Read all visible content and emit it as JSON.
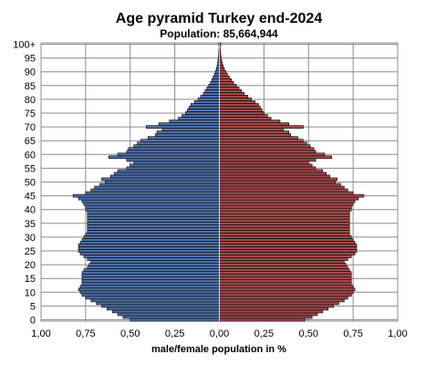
{
  "chart_data": {
    "type": "bar",
    "orientation": "horizontal",
    "layout": "population-pyramid",
    "title": "Age pyramid Turkey end-2024",
    "subtitle": "Population: 85,664,944",
    "xlabel": "male/female population  in %",
    "ylabel": "",
    "x_tick_labels": [
      "1,00",
      "0,75",
      "0,50",
      "0,25",
      "0,00",
      "0,25",
      "0,50",
      "0,75",
      "1,00"
    ],
    "y_tick_labels": [
      "0",
      "5",
      "10",
      "15",
      "20",
      "25",
      "30",
      "35",
      "40",
      "45",
      "50",
      "55",
      "60",
      "65",
      "70",
      "75",
      "80",
      "85",
      "90",
      "95",
      "100+"
    ],
    "xlim": [
      -1.0,
      1.0
    ],
    "age_range": [
      0,
      100
    ],
    "grid": true,
    "colors": {
      "male": "#4f6fa6",
      "female": "#a14a4a",
      "outline": "#000000",
      "grid": "#8c8c8c"
    },
    "series": [
      {
        "side": "left",
        "values": [
          0.5,
          0.54,
          0.57,
          0.6,
          0.63,
          0.66,
          0.69,
          0.72,
          0.75,
          0.77,
          0.78,
          0.79,
          0.78,
          0.77,
          0.77,
          0.77,
          0.77,
          0.77,
          0.76,
          0.74,
          0.73,
          0.72,
          0.74,
          0.76,
          0.78,
          0.79,
          0.79,
          0.79,
          0.78,
          0.77,
          0.76,
          0.75,
          0.74,
          0.74,
          0.74,
          0.74,
          0.74,
          0.74,
          0.74,
          0.74,
          0.75,
          0.75,
          0.76,
          0.77,
          0.79,
          0.82,
          0.75,
          0.72,
          0.7,
          0.67,
          0.64,
          0.66,
          0.61,
          0.59,
          0.57,
          0.52,
          0.5,
          0.48,
          0.52,
          0.62,
          0.57,
          0.52,
          0.51,
          0.48,
          0.46,
          0.44,
          0.4,
          0.36,
          0.35,
          0.32,
          0.41,
          0.34,
          0.28,
          0.23,
          0.21,
          0.19,
          0.18,
          0.17,
          0.16,
          0.14,
          0.12,
          0.105,
          0.09,
          0.08,
          0.07,
          0.06,
          0.05,
          0.042,
          0.035,
          0.028,
          0.022,
          0.017,
          0.013,
          0.01,
          0.008,
          0.006,
          0.005,
          0.004,
          0.003,
          0.002,
          0.004
        ]
      },
      {
        "side": "right",
        "values": [
          0.48,
          0.52,
          0.55,
          0.58,
          0.61,
          0.64,
          0.67,
          0.7,
          0.72,
          0.74,
          0.75,
          0.76,
          0.75,
          0.74,
          0.74,
          0.74,
          0.74,
          0.74,
          0.73,
          0.72,
          0.71,
          0.7,
          0.72,
          0.74,
          0.76,
          0.77,
          0.77,
          0.77,
          0.76,
          0.75,
          0.74,
          0.73,
          0.73,
          0.73,
          0.73,
          0.73,
          0.73,
          0.73,
          0.73,
          0.73,
          0.74,
          0.74,
          0.75,
          0.76,
          0.78,
          0.81,
          0.75,
          0.72,
          0.7,
          0.68,
          0.65,
          0.66,
          0.62,
          0.6,
          0.58,
          0.54,
          0.52,
          0.5,
          0.54,
          0.63,
          0.59,
          0.54,
          0.53,
          0.51,
          0.49,
          0.47,
          0.44,
          0.4,
          0.39,
          0.36,
          0.47,
          0.39,
          0.34,
          0.29,
          0.27,
          0.25,
          0.24,
          0.23,
          0.22,
          0.2,
          0.18,
          0.16,
          0.14,
          0.125,
          0.11,
          0.095,
          0.08,
          0.068,
          0.056,
          0.045,
          0.036,
          0.028,
          0.022,
          0.017,
          0.013,
          0.01,
          0.008,
          0.006,
          0.005,
          0.004,
          0.008
        ]
      }
    ]
  }
}
